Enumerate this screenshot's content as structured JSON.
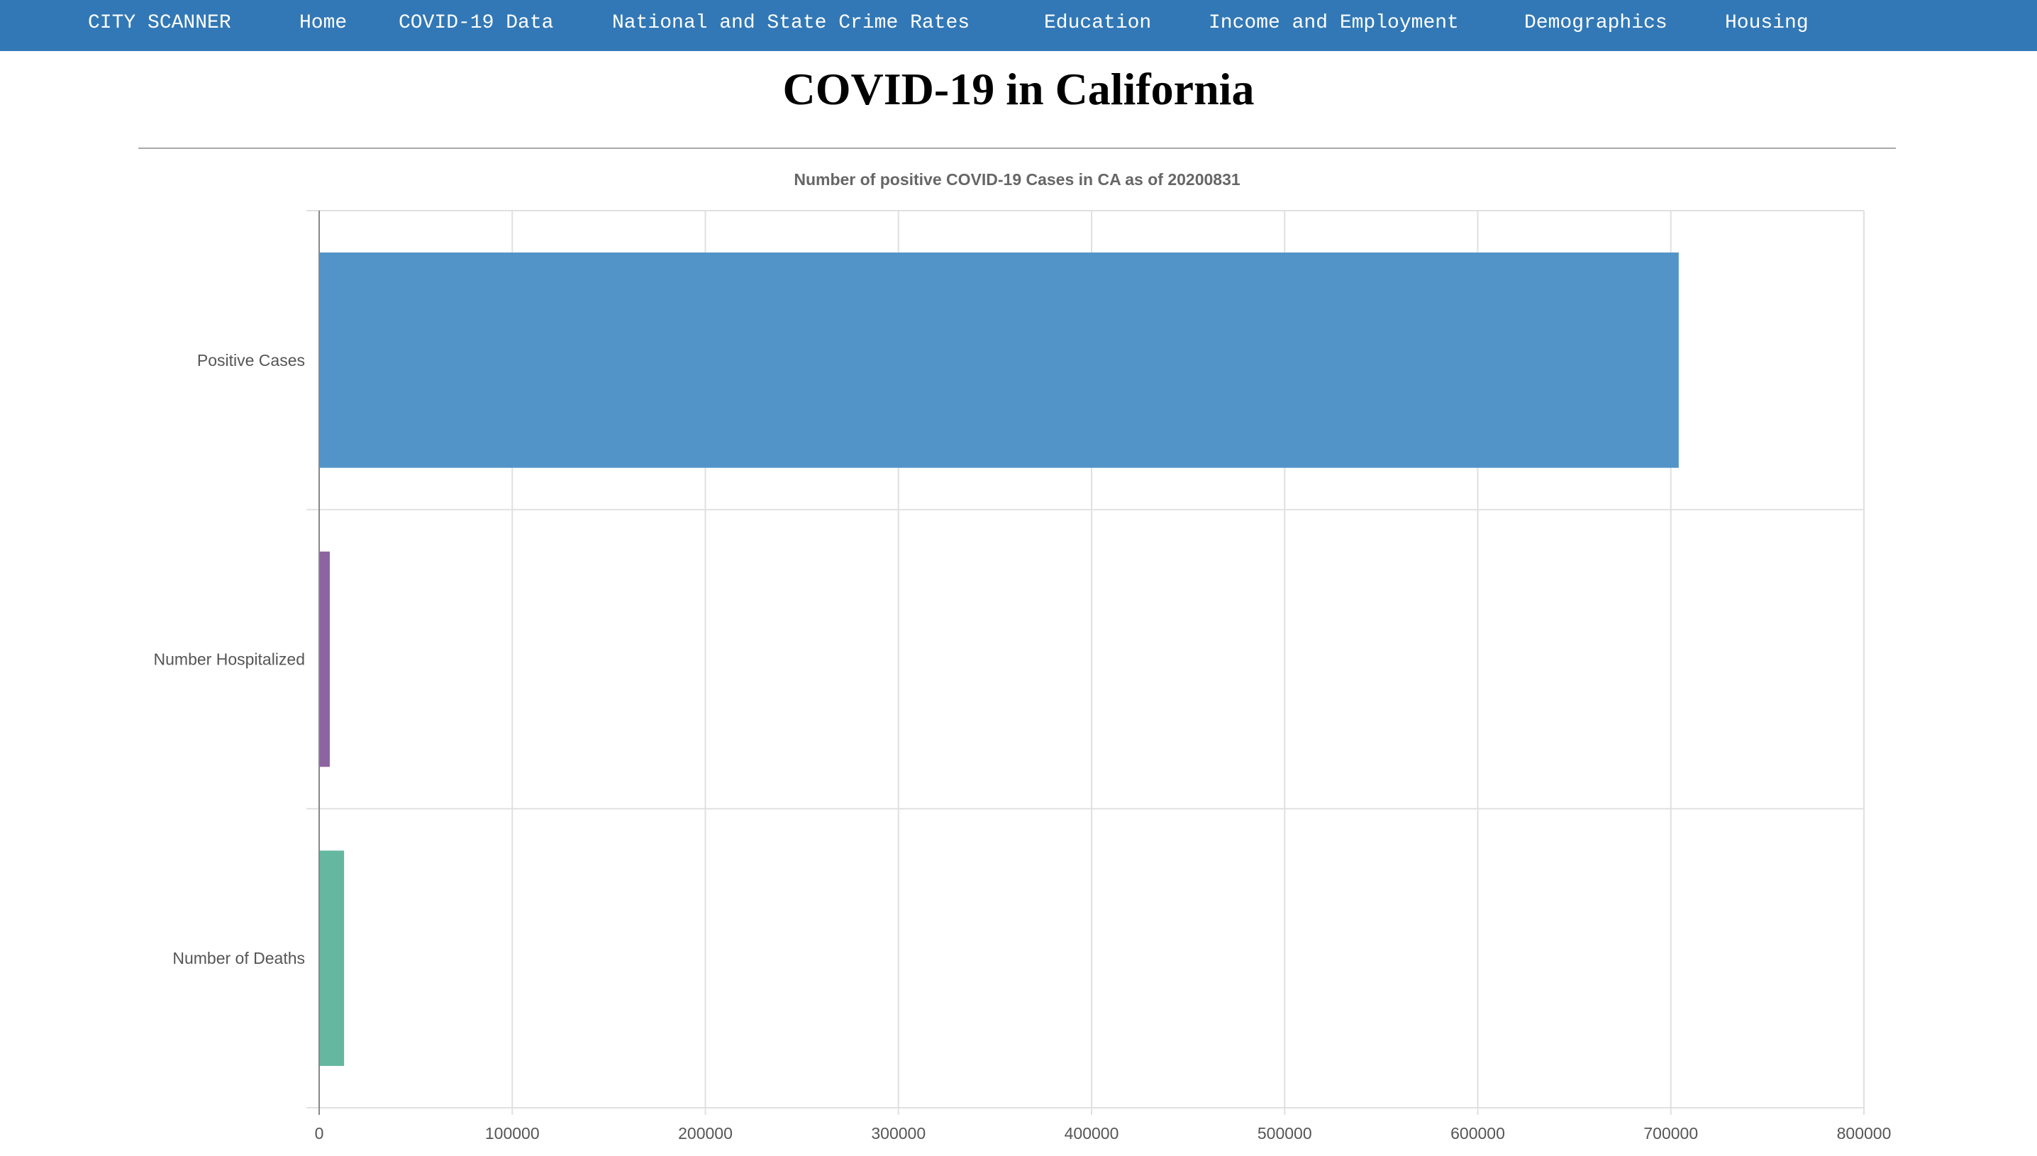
{
  "nav": {
    "brand": "CITY SCANNER",
    "items": [
      {
        "label": "Home"
      },
      {
        "label": "COVID-19 Data"
      },
      {
        "label": "National and State Crime Rates"
      },
      {
        "label": "Education"
      },
      {
        "label": "Income and Employment"
      },
      {
        "label": "Demographics"
      },
      {
        "label": "Housing"
      }
    ]
  },
  "page": {
    "title": "COVID-19 in California"
  },
  "colors": {
    "navbar": "#3278b6",
    "grid": "#e0e0e0",
    "axis": "#888888",
    "label": "#555555"
  },
  "chart_data": {
    "type": "bar",
    "orientation": "horizontal",
    "title": "Number of positive COVID-19 Cases in CA as of 20200831",
    "categories": [
      "Positive Cases",
      "Number Hospitalized",
      "Number of Deaths"
    ],
    "values": [
      704085,
      5500,
      12905
    ],
    "colors": [
      "#5294c8",
      "#8b64a0",
      "#65b89f"
    ],
    "xlim": [
      0,
      800000
    ],
    "xticks": [
      "0",
      "100000",
      "200000",
      "300000",
      "400000",
      "500000",
      "600000",
      "700000",
      "800000"
    ],
    "grid": true,
    "legend": "none"
  }
}
